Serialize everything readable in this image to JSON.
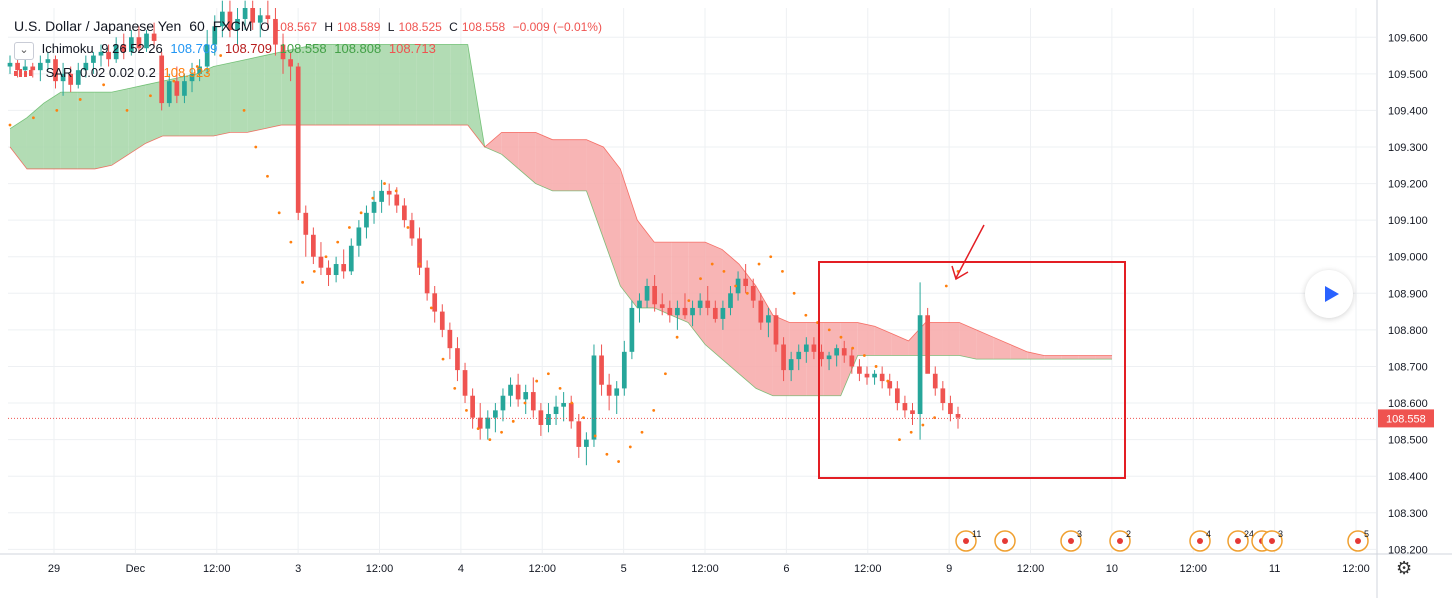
{
  "legend": {
    "symbol": "U.S. Dollar / Japanese Yen",
    "interval": "60",
    "source": "FXCM",
    "o_label": "O",
    "o": "108.567",
    "h_label": "H",
    "h": "108.589",
    "l_label": "L",
    "l": "108.525",
    "c_label": "C",
    "c": "108.558",
    "change": "−0.009 (−0.01%)",
    "ichimoku": {
      "name": "Ichimoku",
      "params": "9 26 52 26",
      "v1": "108.709",
      "v2": "108.709",
      "v3": "108.558",
      "v4": "108.808",
      "v5": "108.713"
    },
    "sar": {
      "name": "SAR",
      "params": "0.02 0.02 0.2",
      "value": "108.923"
    }
  },
  "colors": {
    "up": "#26a69a",
    "down": "#ef5350",
    "sar": "#ff7f0e",
    "cloud_green": "#a5d6a7",
    "cloud_red": "#f7a8a8",
    "annotation": "#e31e24",
    "tenkan": "#2196f3",
    "kijun": "#b71c1c",
    "chikou": "#43a047",
    "spanA": "#4caf50",
    "spanB": "#f44336",
    "price_line": "#ef5350"
  },
  "icons": {
    "collapse": "chevron-down-icon",
    "play": "play-icon",
    "settings": "gear-icon"
  },
  "chart_data": {
    "type": "candlestick",
    "title": "U.S. Dollar / Japanese Yen, 60, FXCM",
    "ylim": [
      108.19,
      109.68
    ],
    "y_ticks": [
      "109.600",
      "109.500",
      "109.400",
      "109.300",
      "109.200",
      "109.100",
      "109.000",
      "108.900",
      "108.800",
      "108.700",
      "108.600",
      "108.500",
      "108.400",
      "108.300",
      "108.200"
    ],
    "x_ticks": [
      "29",
      "Dec",
      "12:00",
      "3",
      "12:00",
      "4",
      "12:00",
      "5",
      "12:00",
      "6",
      "12:00",
      "9",
      "12:00",
      "10",
      "12:00",
      "11",
      "12:00"
    ],
    "last_price": "108.558",
    "candles_ohlc": [
      [
        109.52,
        109.55,
        109.5,
        109.53
      ],
      [
        109.53,
        109.54,
        109.49,
        109.51
      ],
      [
        109.51,
        109.54,
        109.5,
        109.52
      ],
      [
        109.52,
        109.53,
        109.49,
        109.51
      ],
      [
        109.51,
        109.55,
        109.48,
        109.53
      ],
      [
        109.53,
        109.56,
        109.51,
        109.54
      ],
      [
        109.54,
        109.55,
        109.46,
        109.48
      ],
      [
        109.48,
        109.53,
        109.44,
        109.5
      ],
      [
        109.5,
        109.52,
        109.45,
        109.47
      ],
      [
        109.47,
        109.53,
        109.46,
        109.51
      ],
      [
        109.51,
        109.55,
        109.49,
        109.53
      ],
      [
        109.53,
        109.56,
        109.5,
        109.55
      ],
      [
        109.55,
        109.58,
        109.52,
        109.56
      ],
      [
        109.56,
        109.58,
        109.52,
        109.54
      ],
      [
        109.54,
        109.6,
        109.53,
        109.58
      ],
      [
        109.58,
        109.61,
        109.54,
        109.56
      ],
      [
        109.56,
        109.62,
        109.55,
        109.6
      ],
      [
        109.6,
        109.63,
        109.56,
        109.57
      ],
      [
        109.57,
        109.62,
        109.56,
        109.61
      ],
      [
        109.61,
        109.64,
        109.57,
        109.59
      ],
      [
        109.55,
        109.56,
        109.4,
        109.42
      ],
      [
        109.42,
        109.5,
        109.41,
        109.48
      ],
      [
        109.48,
        109.52,
        109.42,
        109.44
      ],
      [
        109.44,
        109.5,
        109.42,
        109.48
      ],
      [
        109.48,
        109.53,
        109.45,
        109.5
      ],
      [
        109.5,
        109.54,
        109.48,
        109.52
      ],
      [
        109.52,
        109.62,
        109.5,
        109.58
      ],
      [
        109.58,
        109.66,
        109.55,
        109.63
      ],
      [
        109.63,
        109.7,
        109.6,
        109.67
      ],
      [
        109.67,
        109.7,
        109.6,
        109.62
      ],
      [
        109.62,
        109.68,
        109.58,
        109.65
      ],
      [
        109.65,
        109.7,
        109.62,
        109.68
      ],
      [
        109.68,
        109.7,
        109.62,
        109.64
      ],
      [
        109.64,
        109.68,
        109.6,
        109.66
      ],
      [
        109.66,
        109.7,
        109.62,
        109.65
      ],
      [
        109.65,
        109.68,
        109.55,
        109.58
      ],
      [
        109.58,
        109.61,
        109.5,
        109.54
      ],
      [
        109.54,
        109.56,
        109.48,
        109.52
      ],
      [
        109.52,
        109.53,
        109.1,
        109.12
      ],
      [
        109.12,
        109.14,
        109.0,
        109.06
      ],
      [
        109.06,
        109.08,
        108.98,
        109.0
      ],
      [
        109.0,
        109.04,
        108.95,
        108.97
      ],
      [
        108.97,
        108.99,
        108.92,
        108.95
      ],
      [
        108.95,
        109.0,
        108.93,
        108.98
      ],
      [
        108.98,
        109.02,
        108.94,
        108.96
      ],
      [
        108.96,
        109.05,
        108.95,
        109.03
      ],
      [
        109.03,
        109.1,
        109.0,
        109.08
      ],
      [
        109.08,
        109.14,
        109.05,
        109.12
      ],
      [
        109.12,
        109.18,
        109.09,
        109.15
      ],
      [
        109.15,
        109.21,
        109.12,
        109.18
      ],
      [
        109.18,
        109.2,
        109.14,
        109.17
      ],
      [
        109.17,
        109.19,
        109.12,
        109.14
      ],
      [
        109.14,
        109.16,
        109.08,
        109.1
      ],
      [
        109.1,
        109.12,
        109.03,
        109.05
      ],
      [
        109.05,
        109.08,
        108.95,
        108.97
      ],
      [
        108.97,
        108.99,
        108.88,
        108.9
      ],
      [
        108.9,
        108.92,
        108.82,
        108.85
      ],
      [
        108.85,
        108.87,
        108.78,
        108.8
      ],
      [
        108.8,
        108.82,
        108.72,
        108.75
      ],
      [
        108.75,
        108.78,
        108.66,
        108.69
      ],
      [
        108.69,
        108.71,
        108.6,
        108.62
      ],
      [
        108.62,
        108.64,
        108.53,
        108.56
      ],
      [
        108.56,
        108.6,
        108.5,
        108.53
      ],
      [
        108.53,
        108.58,
        108.5,
        108.56
      ],
      [
        108.56,
        108.6,
        108.52,
        108.58
      ],
      [
        108.58,
        108.64,
        108.55,
        108.62
      ],
      [
        108.62,
        108.67,
        108.59,
        108.65
      ],
      [
        108.65,
        108.68,
        108.59,
        108.61
      ],
      [
        108.61,
        108.65,
        108.57,
        108.63
      ],
      [
        108.63,
        108.67,
        108.56,
        108.58
      ],
      [
        108.58,
        108.6,
        108.51,
        108.54
      ],
      [
        108.54,
        108.6,
        108.52,
        108.57
      ],
      [
        108.57,
        108.62,
        108.54,
        108.59
      ],
      [
        108.59,
        108.63,
        108.55,
        108.6
      ],
      [
        108.6,
        108.62,
        108.53,
        108.55
      ],
      [
        108.55,
        108.57,
        108.45,
        108.48
      ],
      [
        108.48,
        108.52,
        108.43,
        108.5
      ],
      [
        108.5,
        108.76,
        108.48,
        108.73
      ],
      [
        108.73,
        108.76,
        108.62,
        108.65
      ],
      [
        108.65,
        108.68,
        108.58,
        108.62
      ],
      [
        108.62,
        108.66,
        108.57,
        108.64
      ],
      [
        108.64,
        108.77,
        108.62,
        108.74
      ],
      [
        108.74,
        108.88,
        108.72,
        108.86
      ],
      [
        108.86,
        108.9,
        108.82,
        108.88
      ],
      [
        108.88,
        108.94,
        108.86,
        108.92
      ],
      [
        108.92,
        108.95,
        108.85,
        108.87
      ],
      [
        108.87,
        108.9,
        108.84,
        108.86
      ],
      [
        108.86,
        108.88,
        108.82,
        108.84
      ],
      [
        108.84,
        108.88,
        108.8,
        108.86
      ],
      [
        108.86,
        108.9,
        108.83,
        108.84
      ],
      [
        108.84,
        108.88,
        108.81,
        108.86
      ],
      [
        108.86,
        108.9,
        108.84,
        108.88
      ],
      [
        108.88,
        108.92,
        108.84,
        108.86
      ],
      [
        108.86,
        108.88,
        108.82,
        108.83
      ],
      [
        108.83,
        108.88,
        108.8,
        108.86
      ],
      [
        108.86,
        108.92,
        108.84,
        108.9
      ],
      [
        108.9,
        108.96,
        108.88,
        108.94
      ],
      [
        108.94,
        108.98,
        108.9,
        108.92
      ],
      [
        108.92,
        108.94,
        108.86,
        108.88
      ],
      [
        108.88,
        108.9,
        108.8,
        108.82
      ],
      [
        108.82,
        108.86,
        108.78,
        108.84
      ],
      [
        108.84,
        108.86,
        108.74,
        108.76
      ],
      [
        108.76,
        108.78,
        108.66,
        108.69
      ],
      [
        108.69,
        108.74,
        108.66,
        108.72
      ],
      [
        108.72,
        108.76,
        108.69,
        108.74
      ],
      [
        108.74,
        108.78,
        108.71,
        108.76
      ],
      [
        108.76,
        108.78,
        108.72,
        108.74
      ],
      [
        108.74,
        108.76,
        108.7,
        108.72
      ],
      [
        108.72,
        108.74,
        108.69,
        108.73
      ],
      [
        108.73,
        108.76,
        108.7,
        108.75
      ],
      [
        108.75,
        108.77,
        108.71,
        108.73
      ],
      [
        108.73,
        108.75,
        108.68,
        108.7
      ],
      [
        108.7,
        108.72,
        108.66,
        108.68
      ],
      [
        108.68,
        108.7,
        108.65,
        108.67
      ],
      [
        108.67,
        108.69,
        108.65,
        108.68
      ],
      [
        108.68,
        108.7,
        108.64,
        108.66
      ],
      [
        108.66,
        108.68,
        108.62,
        108.64
      ],
      [
        108.64,
        108.66,
        108.58,
        108.6
      ],
      [
        108.6,
        108.62,
        108.56,
        108.58
      ],
      [
        108.58,
        108.6,
        108.54,
        108.57
      ],
      [
        108.57,
        108.93,
        108.5,
        108.84
      ],
      [
        108.84,
        108.86,
        108.72,
        108.68
      ],
      [
        108.68,
        108.7,
        108.62,
        108.64
      ],
      [
        108.64,
        108.66,
        108.58,
        108.6
      ],
      [
        108.6,
        108.62,
        108.55,
        108.57
      ],
      [
        108.57,
        108.59,
        108.53,
        108.56
      ]
    ],
    "cloud": [
      [
        109.35,
        109.3
      ],
      [
        109.38,
        109.24
      ],
      [
        109.42,
        109.24
      ],
      [
        109.45,
        109.24
      ],
      [
        109.45,
        109.24
      ],
      [
        109.45,
        109.24
      ],
      [
        109.45,
        109.25
      ],
      [
        109.46,
        109.28
      ],
      [
        109.47,
        109.31
      ],
      [
        109.48,
        109.33
      ],
      [
        109.49,
        109.33
      ],
      [
        109.5,
        109.33
      ],
      [
        109.52,
        109.33
      ],
      [
        109.53,
        109.34
      ],
      [
        109.54,
        109.34
      ],
      [
        109.55,
        109.35
      ],
      [
        109.56,
        109.36
      ],
      [
        109.57,
        109.36
      ],
      [
        109.58,
        109.36
      ],
      [
        109.58,
        109.36
      ],
      [
        109.58,
        109.36
      ],
      [
        109.58,
        109.36
      ],
      [
        109.58,
        109.36
      ],
      [
        109.58,
        109.36
      ],
      [
        109.58,
        109.36
      ],
      [
        109.58,
        109.36
      ],
      [
        109.58,
        109.36
      ],
      [
        109.58,
        109.36
      ],
      [
        109.3,
        109.3
      ],
      [
        109.28,
        109.34
      ],
      [
        109.24,
        109.34
      ],
      [
        109.2,
        109.34
      ],
      [
        109.18,
        109.32
      ],
      [
        109.18,
        109.32
      ],
      [
        109.18,
        109.32
      ],
      [
        109.05,
        109.3
      ],
      [
        108.92,
        109.24
      ],
      [
        108.86,
        109.1
      ],
      [
        108.86,
        109.04
      ],
      [
        108.84,
        109.04
      ],
      [
        108.82,
        109.04
      ],
      [
        108.76,
        109.04
      ],
      [
        108.72,
        109.02
      ],
      [
        108.68,
        108.98
      ],
      [
        108.64,
        108.92
      ],
      [
        108.62,
        108.84
      ],
      [
        108.62,
        108.82
      ],
      [
        108.62,
        108.82
      ],
      [
        108.62,
        108.82
      ],
      [
        108.62,
        108.82
      ],
      [
        108.73,
        108.82
      ],
      [
        108.73,
        108.81
      ],
      [
        108.73,
        108.79
      ],
      [
        108.73,
        108.77
      ],
      [
        108.73,
        108.82
      ],
      [
        108.73,
        108.82
      ],
      [
        108.73,
        108.82
      ],
      [
        108.72,
        108.8
      ],
      [
        108.72,
        108.78
      ],
      [
        108.72,
        108.76
      ],
      [
        108.72,
        108.74
      ],
      [
        108.72,
        108.73
      ],
      [
        108.72,
        108.73
      ],
      [
        108.72,
        108.73
      ],
      [
        108.72,
        108.73
      ],
      [
        108.72,
        108.73
      ]
    ],
    "sar_points": [
      [
        0,
        109.36
      ],
      [
        4,
        109.38
      ],
      [
        8,
        109.4
      ],
      [
        12,
        109.43
      ],
      [
        16,
        109.47
      ],
      [
        20,
        109.4
      ],
      [
        24,
        109.44
      ],
      [
        28,
        109.48
      ],
      [
        32,
        109.52
      ],
      [
        36,
        109.55
      ],
      [
        40,
        109.4
      ],
      [
        42,
        109.3
      ],
      [
        44,
        109.22
      ],
      [
        46,
        109.12
      ],
      [
        48,
        109.04
      ],
      [
        50,
        108.93
      ],
      [
        52,
        108.96
      ],
      [
        54,
        109.0
      ],
      [
        56,
        109.04
      ],
      [
        58,
        109.08
      ],
      [
        60,
        109.12
      ],
      [
        62,
        109.16
      ],
      [
        64,
        109.2
      ],
      [
        66,
        109.18
      ],
      [
        68,
        109.08
      ],
      [
        70,
        108.98
      ],
      [
        72,
        108.86
      ],
      [
        74,
        108.72
      ],
      [
        76,
        108.64
      ],
      [
        78,
        108.58
      ],
      [
        80,
        108.53
      ],
      [
        82,
        108.5
      ],
      [
        84,
        108.52
      ],
      [
        86,
        108.55
      ],
      [
        88,
        108.6
      ],
      [
        90,
        108.66
      ],
      [
        92,
        108.68
      ],
      [
        94,
        108.64
      ],
      [
        96,
        108.6
      ],
      [
        98,
        108.56
      ],
      [
        100,
        108.51
      ],
      [
        102,
        108.46
      ],
      [
        104,
        108.44
      ],
      [
        106,
        108.48
      ],
      [
        108,
        108.52
      ],
      [
        110,
        108.58
      ],
      [
        112,
        108.68
      ],
      [
        114,
        108.78
      ],
      [
        116,
        108.88
      ],
      [
        118,
        108.94
      ],
      [
        120,
        108.98
      ],
      [
        122,
        108.96
      ],
      [
        124,
        108.92
      ],
      [
        126,
        108.9
      ],
      [
        128,
        108.98
      ],
      [
        130,
        109.0
      ],
      [
        132,
        108.96
      ],
      [
        134,
        108.9
      ],
      [
        136,
        108.84
      ],
      [
        138,
        108.82
      ],
      [
        140,
        108.8
      ],
      [
        142,
        108.78
      ],
      [
        144,
        108.75
      ],
      [
        146,
        108.73
      ],
      [
        148,
        108.7
      ],
      [
        150,
        108.66
      ],
      [
        152,
        108.5
      ],
      [
        154,
        108.52
      ],
      [
        156,
        108.54
      ],
      [
        158,
        108.56
      ],
      [
        160,
        108.92
      ],
      [
        162,
        108.96
      ]
    ],
    "events": [
      "11",
      "",
      "3",
      "2",
      "4",
      "24",
      "8",
      "3",
      "5"
    ]
  }
}
